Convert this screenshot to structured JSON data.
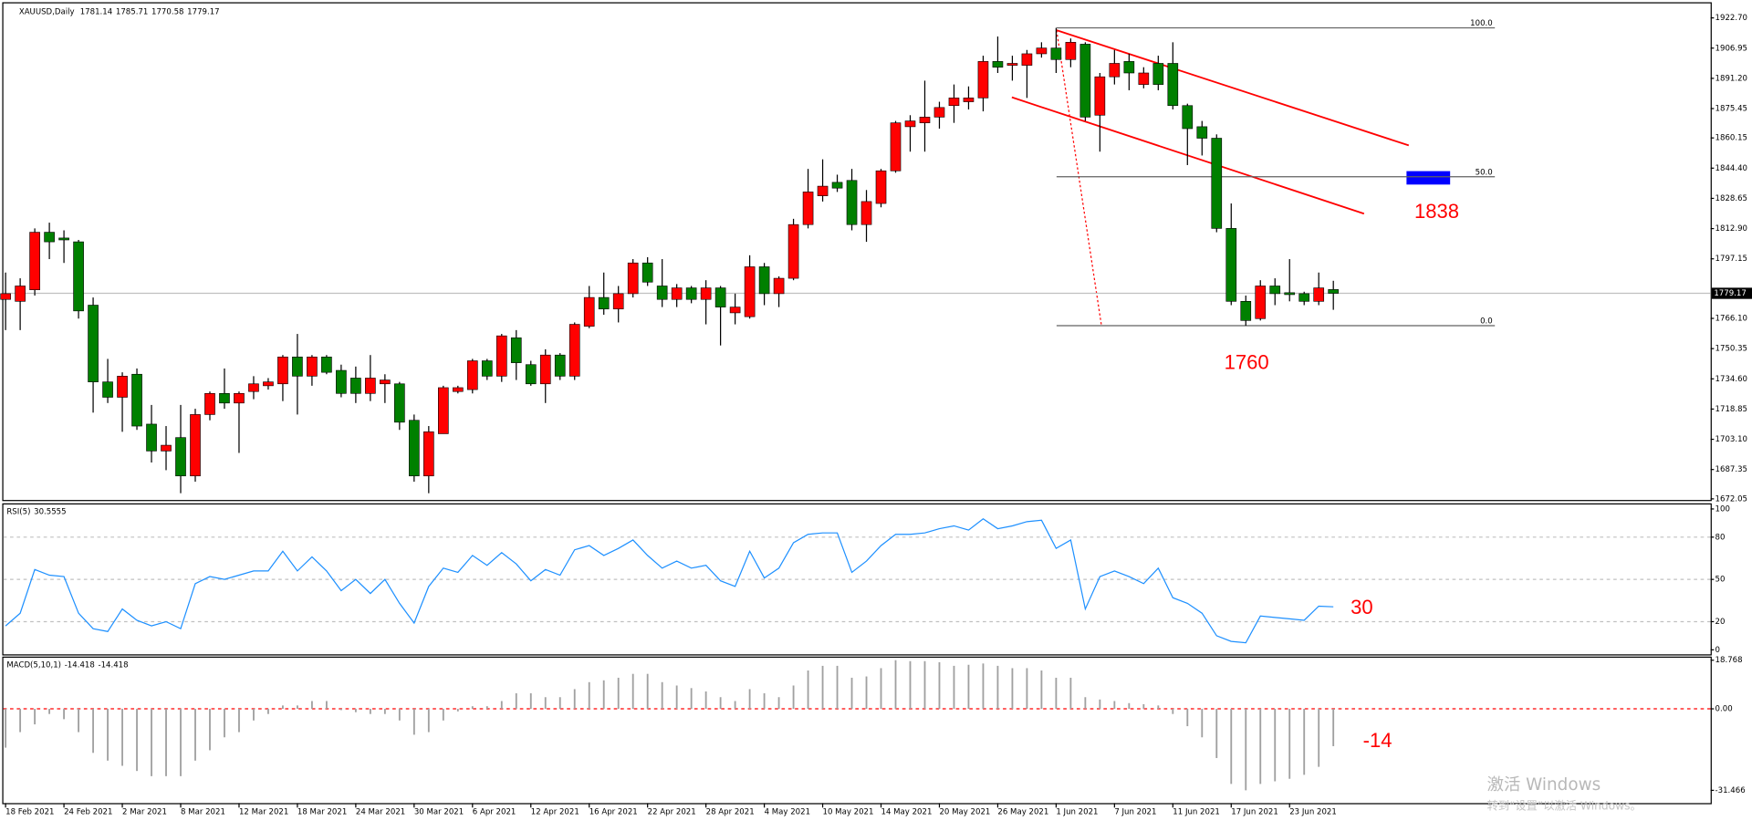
{
  "chart_data": [
    {
      "type": "candlestick",
      "symbol": "XAUUSD,Daily",
      "categories": [
        "18 Feb 2021",
        null,
        null,
        null,
        "24 Feb 2021",
        null,
        null,
        null,
        "2 Mar 2021",
        null,
        null,
        null,
        "8 Mar 2021",
        null,
        null,
        null,
        "12 Mar 2021",
        null,
        null,
        null,
        "18 Mar 2021",
        null,
        null,
        null,
        "24 Mar 2021",
        null,
        null,
        null,
        "30 Mar 2021",
        null,
        null,
        null,
        "6 Apr 2021",
        null,
        null,
        null,
        "12 Apr 2021",
        null,
        null,
        null,
        "16 Apr 2021",
        null,
        null,
        null,
        "22 Apr 2021",
        null,
        null,
        null,
        "28 Apr 2021",
        null,
        null,
        null,
        "4 May 2021",
        null,
        null,
        null,
        "10 May 2021",
        null,
        null,
        null,
        "14 May 2021",
        null,
        null,
        null,
        "20 May 2021",
        null,
        null,
        null,
        "26 May 2021",
        null,
        null,
        null,
        "1 Jun 2021",
        null,
        null,
        null,
        "7 Jun 2021",
        null,
        null,
        null,
        "11 Jun 2021",
        null,
        null,
        null,
        "17 Jun 2021",
        null,
        null,
        null,
        "23 Jun 2021",
        null,
        null,
        null
      ],
      "open": [
        1776,
        1775,
        1781,
        1811,
        1808,
        1806,
        1773,
        1733,
        1725,
        1737,
        1711,
        1697,
        1704,
        1684,
        1716,
        1727,
        1722,
        1728,
        1731,
        1732,
        1746,
        1736,
        1746,
        1739,
        1735,
        1727,
        1732,
        1732,
        1713,
        1684,
        1706,
        1728,
        1729,
        1744,
        1736,
        1756,
        1742,
        1732,
        1747,
        1736,
        1762,
        1777,
        1771,
        1779,
        1795,
        1783,
        1776,
        1782,
        1776,
        1782,
        1769,
        1767,
        1793,
        1779,
        1787,
        1815,
        1830,
        1837,
        1838,
        1815,
        1826,
        1843,
        1866,
        1868,
        1871,
        1877,
        1879,
        1881,
        1900,
        1898,
        1898,
        1904,
        1907,
        1901,
        1909,
        1872,
        1892,
        1900,
        1888,
        1899,
        1899,
        1877,
        1866,
        1860,
        1813,
        1775,
        1766,
        1783,
        1779.5,
        1779,
        1775,
        1781.14
      ],
      "high": [
        1790,
        1787,
        1813,
        1816,
        1812,
        1807,
        1777,
        1745,
        1738,
        1740,
        1721,
        1710,
        1721,
        1719,
        1728,
        1740,
        1728,
        1736,
        1735,
        1747,
        1758,
        1747,
        1747,
        1742,
        1741,
        1747,
        1737,
        1733,
        1716,
        1710,
        1731,
        1731,
        1745,
        1745,
        1758,
        1760,
        1744,
        1750,
        1748,
        1764,
        1783,
        1790,
        1783,
        1797,
        1798,
        1797,
        1784,
        1783,
        1786,
        1783,
        1779,
        1799,
        1795,
        1788,
        1818,
        1844,
        1849,
        1841,
        1844,
        1833,
        1844,
        1869,
        1872,
        1890,
        1879,
        1888,
        1887,
        1903,
        1913,
        1903,
        1906,
        1910,
        1917.5,
        1912,
        1910,
        1894,
        1906,
        1904,
        1897,
        1903,
        1910,
        1878,
        1869,
        1862,
        1826,
        1778,
        1786,
        1787,
        1797,
        1780,
        1790,
        1785.71
      ],
      "low": [
        1760,
        1760,
        1778,
        1797,
        1795,
        1766,
        1717,
        1722,
        1707,
        1708,
        1691,
        1687,
        1675,
        1681,
        1713,
        1719,
        1696,
        1724,
        1729,
        1723,
        1716,
        1731,
        1737,
        1725,
        1722,
        1723,
        1722,
        1708,
        1681,
        1675,
        1706,
        1727,
        1727,
        1734,
        1733,
        1734,
        1731,
        1722,
        1734,
        1734,
        1761,
        1768,
        1764,
        1777,
        1783,
        1772,
        1772,
        1774,
        1763,
        1752,
        1763,
        1766,
        1773,
        1772,
        1786,
        1813,
        1827,
        1832,
        1812,
        1806,
        1824,
        1842,
        1853,
        1853,
        1865,
        1868,
        1875,
        1874,
        1894,
        1890,
        1881,
        1902,
        1894,
        1897,
        1869,
        1853,
        1888,
        1885,
        1886,
        1885,
        1875,
        1846,
        1851,
        1811,
        1773,
        1762.3,
        1765,
        1773,
        1775,
        1773,
        1773,
        1770.58
      ],
      "close": [
        1779,
        1783,
        1811,
        1806,
        1807,
        1770,
        1733,
        1725,
        1736,
        1710,
        1697,
        1700,
        1684,
        1716,
        1727,
        1722,
        1727,
        1732,
        1733,
        1746,
        1736,
        1746,
        1738,
        1727,
        1727,
        1735,
        1734,
        1712,
        1684,
        1707,
        1730,
        1730,
        1744,
        1736,
        1757,
        1743,
        1732,
        1747,
        1736,
        1763,
        1777,
        1771,
        1779,
        1795,
        1785,
        1776,
        1782,
        1776,
        1782,
        1772,
        1772,
        1793,
        1779,
        1787,
        1815,
        1832,
        1835,
        1834,
        1815,
        1827,
        1843,
        1868,
        1869,
        1871,
        1876,
        1881,
        1881,
        1900,
        1897,
        1899,
        1904,
        1907,
        1901,
        1910,
        1871,
        1892,
        1899,
        1894,
        1894,
        1888,
        1877,
        1865,
        1860,
        1813,
        1775,
        1765,
        1783,
        1779,
        1778.5,
        1775,
        1782,
        1779.17
      ],
      "bull_color": "#ff0000",
      "bear_color": "#008000",
      "ylim": [
        1671.47,
        1930.28
      ],
      "yticks": [
        {
          "value": 1922.7,
          "label": "1922.70"
        },
        1906.95,
        {
          "value": 1891.2,
          "label": "1891.20"
        },
        1875.45,
        1860.15,
        {
          "value": 1844.4,
          "label": "1844.40"
        },
        1828.65,
        {
          "value": 1812.9,
          "label": "1812.90"
        },
        1797.15,
        {
          "value": 1766.1,
          "label": "1766.10"
        },
        1750.35,
        {
          "value": 1734.6,
          "label": "1734.60"
        },
        1718.85,
        {
          "value": 1703.1,
          "label": "1703.10"
        },
        1687.35,
        1672.05
      ],
      "fibonacci": [
        {
          "label": "100.0",
          "price": 1917.5
        },
        {
          "label": "50.0",
          "price": 1839.9
        },
        {
          "label": "0.0",
          "price": 1762.3
        }
      ],
      "annotations": [
        "1838",
        "1760"
      ]
    },
    {
      "type": "line",
      "name": "RSI(5)",
      "color": "#1e90ff",
      "values": [
        17,
        26,
        57,
        53,
        52,
        26,
        15,
        13,
        29,
        21,
        17,
        20,
        15,
        47,
        52,
        50,
        53,
        56,
        56,
        70,
        56,
        66,
        56,
        42,
        50,
        40,
        50,
        33,
        19,
        45,
        58,
        55,
        67,
        60,
        69,
        61,
        49,
        57,
        53,
        71,
        74,
        67,
        72,
        78,
        67,
        58,
        63,
        58,
        60,
        49,
        45,
        70,
        51,
        58,
        76,
        82,
        83,
        83,
        55,
        63,
        74,
        82,
        82,
        83,
        86,
        88,
        85,
        93,
        86,
        88,
        91,
        92,
        72,
        78,
        29,
        52,
        56,
        52,
        47,
        58,
        37,
        33,
        26,
        10,
        6,
        5,
        24,
        23,
        22,
        21,
        31,
        30.5555
      ],
      "ylim": [
        -3.2,
        103.2
      ],
      "yticks": [
        0,
        20,
        50,
        80,
        100
      ],
      "levels": [
        20,
        50,
        80
      ],
      "level_color": "#c0c0c0",
      "annotations": [
        "30"
      ]
    },
    {
      "type": "bar",
      "name": "MACD(5,10,1)",
      "color": "#a0a0a0",
      "values": [
        -15,
        -9,
        -6,
        -2,
        -4,
        -9,
        -17,
        -20,
        -22,
        -24,
        -26,
        -26,
        -26,
        -20,
        -16,
        -11,
        -9,
        -4.5,
        -2,
        1.3,
        1.3,
        3,
        3,
        -0.5,
        -1.3,
        -2,
        -2,
        -4.5,
        -10,
        -9,
        -4.5,
        -1,
        1,
        1,
        3,
        6,
        6,
        4.5,
        4.5,
        7.6,
        10.3,
        11,
        12,
        13.5,
        13.5,
        10.3,
        9,
        8,
        6.7,
        4.5,
        3,
        7.6,
        6,
        4.5,
        9,
        14.8,
        16.6,
        16.6,
        12,
        12.5,
        15.7,
        18.768,
        18.4,
        18.4,
        18,
        16.6,
        17,
        17.5,
        16.6,
        15.7,
        15.7,
        14.8,
        12,
        12,
        4.5,
        3.6,
        3,
        2.2,
        1.8,
        1.3,
        -2,
        -6.7,
        -11,
        -19,
        -29,
        -31.466,
        -29,
        -28,
        -27,
        -25.5,
        -22.4,
        -14.418
      ],
      "ylim": [
        -36.4,
        19.74
      ],
      "yticks": [
        18.768,
        {
          "value": 0,
          "label": "0.00"
        },
        -31.466
      ],
      "levels": [
        0
      ],
      "level_color": "#ff0000",
      "annotations": [
        "-14"
      ]
    }
  ],
  "watermark": [
    "激活 Windows",
    "转到“设置”以激活 Windows。"
  ]
}
